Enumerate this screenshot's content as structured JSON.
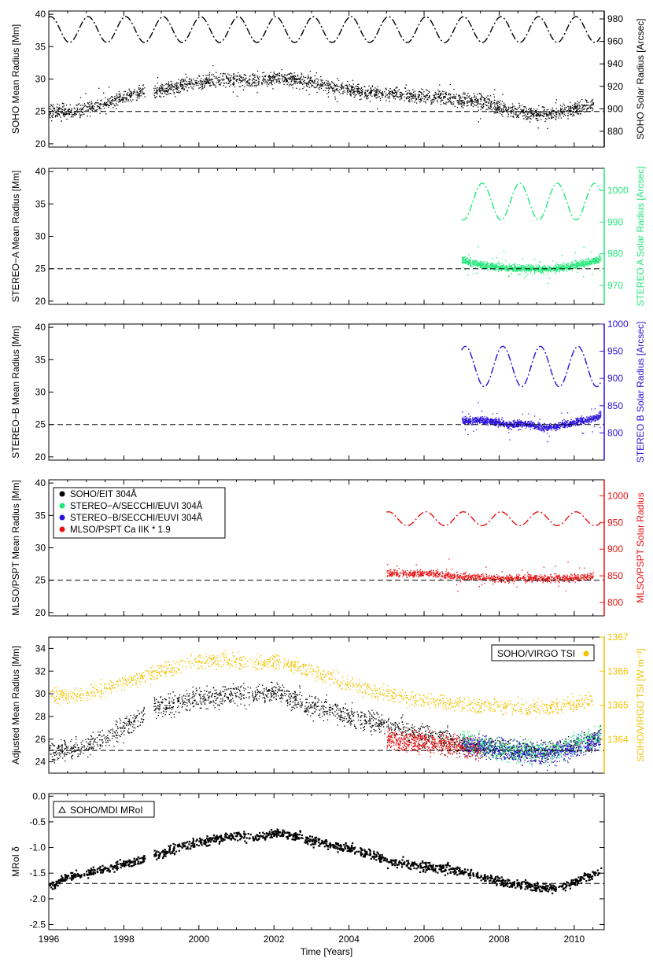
{
  "figure": {
    "xlabel": "Time [Years]",
    "x_ticks": [
      "1996",
      "1998",
      "2000",
      "2002",
      "2004",
      "2006",
      "2008",
      "2010"
    ],
    "xlim": [
      1996,
      2010.8
    ]
  },
  "colors": {
    "soho": "#000000",
    "stereo_a": "#22e878",
    "stereo_b": "#2a12d8",
    "mlso": "#e81010",
    "tsi": "#f2c200",
    "reference": "#000000"
  },
  "chart_data": [
    {
      "id": "soho",
      "type": "scatter",
      "ylabel": "SOHO Mean Radius [Mm]",
      "ylim": [
        19.5,
        40.5
      ],
      "yticks": [
        "20",
        "25",
        "30",
        "35",
        "40"
      ],
      "y2label": "SOHO Solar Radius [Arcsec]",
      "y2lim": [
        866,
        987
      ],
      "y2ticks": [
        "880",
        "900",
        "920",
        "940",
        "960",
        "980"
      ],
      "color_key": "soho",
      "reference_line": 25,
      "series": [
        {
          "values_mm": {
            "x": [
              1996.0,
              1996.5,
              1997.0,
              1997.5,
              1998.0,
              1998.5,
              1999.0,
              1999.5,
              2000.0,
              2000.5,
              2001.0,
              2001.5,
              2002.0,
              2002.5,
              2003.0,
              2003.5,
              2004.0,
              2004.5,
              2005.0,
              2005.5,
              2006.0,
              2006.5,
              2007.0,
              2007.5,
              2008.0,
              2008.5,
              2009.0,
              2009.5,
              2010.0,
              2010.5
            ],
            "y": [
              25.2,
              25.0,
              25.5,
              26.3,
              27.3,
              28.1,
              28.4,
              29.1,
              29.6,
              29.9,
              30.0,
              29.8,
              30.3,
              30.1,
              29.4,
              28.9,
              28.4,
              28.0,
              27.8,
              27.6,
              27.4,
              27.3,
              26.9,
              26.6,
              25.6,
              25.0,
              24.6,
              24.9,
              25.4,
              26.2
            ]
          },
          "orbit_arcsec": {
            "period_years": 1.0,
            "phase_peak": 1996.05,
            "center": 970.5,
            "amplitude": 11.5,
            "style": "dash-dot"
          }
        }
      ]
    },
    {
      "id": "stereo_a",
      "type": "scatter",
      "ylabel": "STEREO−A Mean Radius [Mm]",
      "ylim": [
        19.5,
        40.5
      ],
      "yticks": [
        "20",
        "25",
        "30",
        "35",
        "40"
      ],
      "y2label": "STEREO A Solar Radius [Arcsec]",
      "y2lim": [
        964,
        1007
      ],
      "y2ticks": [
        "970",
        "980",
        "990",
        "1000"
      ],
      "color_key": "stereo_a",
      "reference_line": 25,
      "series": [
        {
          "values_mm": {
            "x": [
              2007.0,
              2007.25,
              2007.5,
              2007.75,
              2008.0,
              2008.25,
              2008.5,
              2008.75,
              2009.0,
              2009.25,
              2009.5,
              2009.75,
              2010.0,
              2010.25,
              2010.5,
              2010.7
            ],
            "y": [
              26.5,
              25.9,
              25.7,
              25.5,
              25.3,
              25.2,
              25.1,
              25.1,
              25.0,
              25.0,
              25.1,
              25.3,
              25.6,
              25.9,
              26.3,
              26.6
            ]
          },
          "orbit_arcsec": {
            "start": 2007.0,
            "period_years": 1.0,
            "phase_peak": 2007.55,
            "center": 996.5,
            "amplitude": 5.8,
            "style": "dash-dot"
          }
        }
      ]
    },
    {
      "id": "stereo_b",
      "type": "scatter",
      "ylabel": "STEREO−B Mean Radius [Mm]",
      "ylim": [
        19.5,
        40.5
      ],
      "yticks": [
        "20",
        "25",
        "30",
        "35",
        "40"
      ],
      "y2label": "STEREO B Solar Radius [Arcsec]",
      "y2lim": [
        750,
        1000
      ],
      "y2ticks": [
        "800",
        "850",
        "900",
        "950",
        "1000"
      ],
      "color_key": "stereo_b",
      "reference_line": 25,
      "series": [
        {
          "values_mm": {
            "x": [
              2007.0,
              2007.25,
              2007.5,
              2007.75,
              2008.0,
              2008.25,
              2008.5,
              2008.75,
              2009.0,
              2009.25,
              2009.5,
              2009.75,
              2010.0,
              2010.25,
              2010.5,
              2010.7
            ],
            "y": [
              25.7,
              25.5,
              25.8,
              25.6,
              25.3,
              25.0,
              25.2,
              25.1,
              24.8,
              24.6,
              24.7,
              25.1,
              25.4,
              25.7,
              26.0,
              26.5
            ]
          },
          "orbit_arcsec": {
            "start": 2007.0,
            "period_years": 1.0,
            "phase_peak": 2008.1,
            "center": 922.0,
            "amplitude": 37.0,
            "style": "dash-dot"
          }
        }
      ]
    },
    {
      "id": "mlso",
      "type": "scatter",
      "ylabel": "MLSO/PSPT Mean Radius [Mm]",
      "ylim": [
        19.5,
        40.5
      ],
      "yticks": [
        "20",
        "25",
        "30",
        "35",
        "40"
      ],
      "y2label": "MLSO/PSPT Solar Radius",
      "y2lim": [
        775,
        1030
      ],
      "y2ticks": [
        "800",
        "850",
        "900",
        "950",
        "1000"
      ],
      "color_key": "mlso",
      "reference_line": 25,
      "legend": {
        "position": "top-left",
        "entries": [
          {
            "label": "SOHO/EIT 304Å",
            "color_key": "soho"
          },
          {
            "label": "STEREO−A/SECCHI/EUVI 304Å",
            "color_key": "stereo_a"
          },
          {
            "label": "STEREO−B/SECCHI/EUVI 304Å",
            "color_key": "stereo_b"
          },
          {
            "label": "MLSO/PSPT Ca IIK * 1.9",
            "color_key": "mlso"
          }
        ]
      },
      "series": [
        {
          "values_mm": {
            "x": [
              2005.0,
              2005.5,
              2006.0,
              2006.5,
              2007.0,
              2007.5,
              2008.0,
              2008.5,
              2009.0,
              2009.5,
              2010.0,
              2010.5
            ],
            "y": [
              26.2,
              26.0,
              26.2,
              25.9,
              25.6,
              25.5,
              25.3,
              25.4,
              25.4,
              25.3,
              25.4,
              25.7
            ]
          },
          "orbit_arcsec": {
            "start": 2005.0,
            "period_years": 1.0,
            "phase_peak": 2005.05,
            "center": 957.0,
            "amplitude": 13.0,
            "style": "dash-dot"
          }
        }
      ]
    },
    {
      "id": "adjusted",
      "type": "scatter",
      "ylabel": "Adjusted Mean Radius [Mm]",
      "ylim": [
        23.0,
        35.0
      ],
      "yticks": [
        "24",
        "26",
        "28",
        "30",
        "32",
        "34"
      ],
      "y2label": "SOHO/VIRGO TSI [W m⁻²]",
      "y2lim": [
        1363.0,
        1367.0
      ],
      "y2ticks": [
        "1364",
        "1365",
        "1366",
        "1367"
      ],
      "reference_line": 25,
      "legend": {
        "position": "top-right",
        "entries": [
          {
            "label": "SOHO/VIRGO TSI",
            "color_key": "tsi"
          }
        ]
      },
      "series": [
        {
          "color_key": "soho",
          "x": [
            1996.0,
            1997.0,
            1998.0,
            1998.5,
            1999.0,
            2000.0,
            2001.0,
            2002.0,
            2003.0,
            2004.0,
            2005.0,
            2006.0,
            2007.0,
            2008.0,
            2009.0,
            2010.0,
            2010.7
          ],
          "y": [
            25.0,
            25.3,
            27.0,
            28.3,
            29.0,
            29.6,
            30.0,
            30.3,
            29.0,
            28.1,
            27.2,
            26.4,
            25.5,
            25.2,
            24.9,
            25.4,
            26.2
          ]
        },
        {
          "color_key": "mlso",
          "x": [
            2005.0,
            2005.5,
            2006.0,
            2006.5,
            2007.0,
            2007.5
          ],
          "y": [
            26.0,
            25.8,
            25.9,
            25.6,
            25.4,
            25.2
          ]
        },
        {
          "color_key": "stereo_a",
          "x": [
            2007.0,
            2007.5,
            2008.0,
            2008.5,
            2009.0,
            2009.5,
            2010.0,
            2010.7
          ],
          "y": [
            25.9,
            25.5,
            25.2,
            25.0,
            24.9,
            25.0,
            25.5,
            26.3
          ]
        },
        {
          "color_key": "stereo_b",
          "x": [
            2007.0,
            2007.5,
            2008.0,
            2008.5,
            2009.0,
            2009.5,
            2010.0,
            2010.7
          ],
          "y": [
            25.6,
            25.4,
            25.1,
            24.9,
            24.7,
            24.8,
            25.3,
            26.0
          ]
        },
        {
          "color_key": "tsi",
          "axis": "right",
          "x": [
            1996.0,
            1996.5,
            1997.0,
            1997.5,
            1998.0,
            1998.5,
            1999.0,
            1999.5,
            2000.0,
            2000.5,
            2001.0,
            2001.5,
            2002.0,
            2002.5,
            2003.0,
            2003.5,
            2004.0,
            2004.5,
            2005.0,
            2005.5,
            2006.0,
            2006.5,
            2007.0,
            2007.5,
            2008.0,
            2008.5,
            2009.0,
            2009.5,
            2010.0,
            2010.5
          ],
          "y": [
            1365.33,
            1365.3,
            1365.35,
            1365.5,
            1365.7,
            1365.85,
            1366.0,
            1366.2,
            1366.3,
            1366.35,
            1366.3,
            1366.2,
            1366.3,
            1366.2,
            1366.0,
            1365.8,
            1365.6,
            1365.45,
            1365.35,
            1365.25,
            1365.15,
            1365.1,
            1365.05,
            1365.0,
            1364.98,
            1364.95,
            1364.93,
            1364.95,
            1365.05,
            1365.18
          ]
        }
      ]
    },
    {
      "id": "mdi",
      "type": "scatter",
      "ylabel": "MRoI δ",
      "ylim": [
        -2.6,
        0.05
      ],
      "yticks": [
        "0.0",
        "-0.5",
        "-1.0",
        "-1.5",
        "-2.0",
        "-2.5"
      ],
      "reference_line": -1.7,
      "legend": {
        "position": "top-left",
        "entries": [
          {
            "label": "SOHO/MDI MRoI",
            "marker": "triangle"
          }
        ]
      },
      "series": [
        {
          "color_key": "soho",
          "x": [
            1996.0,
            1996.5,
            1997.0,
            1997.5,
            1998.0,
            1998.5,
            1999.0,
            1999.5,
            2000.0,
            2000.5,
            2001.0,
            2001.5,
            2002.0,
            2002.5,
            2003.0,
            2003.5,
            2004.0,
            2004.5,
            2005.0,
            2005.5,
            2006.0,
            2006.5,
            2007.0,
            2007.5,
            2008.0,
            2008.5,
            2009.0,
            2009.5,
            2010.0,
            2010.5,
            2010.7
          ],
          "y": [
            -1.75,
            -1.55,
            -1.5,
            -1.4,
            -1.3,
            -1.2,
            -1.1,
            -0.95,
            -0.9,
            -0.8,
            -0.75,
            -0.78,
            -0.7,
            -0.75,
            -0.85,
            -0.95,
            -1.0,
            -1.1,
            -1.25,
            -1.3,
            -1.35,
            -1.4,
            -1.45,
            -1.55,
            -1.65,
            -1.7,
            -1.75,
            -1.78,
            -1.65,
            -1.5,
            -1.45
          ]
        }
      ]
    }
  ]
}
